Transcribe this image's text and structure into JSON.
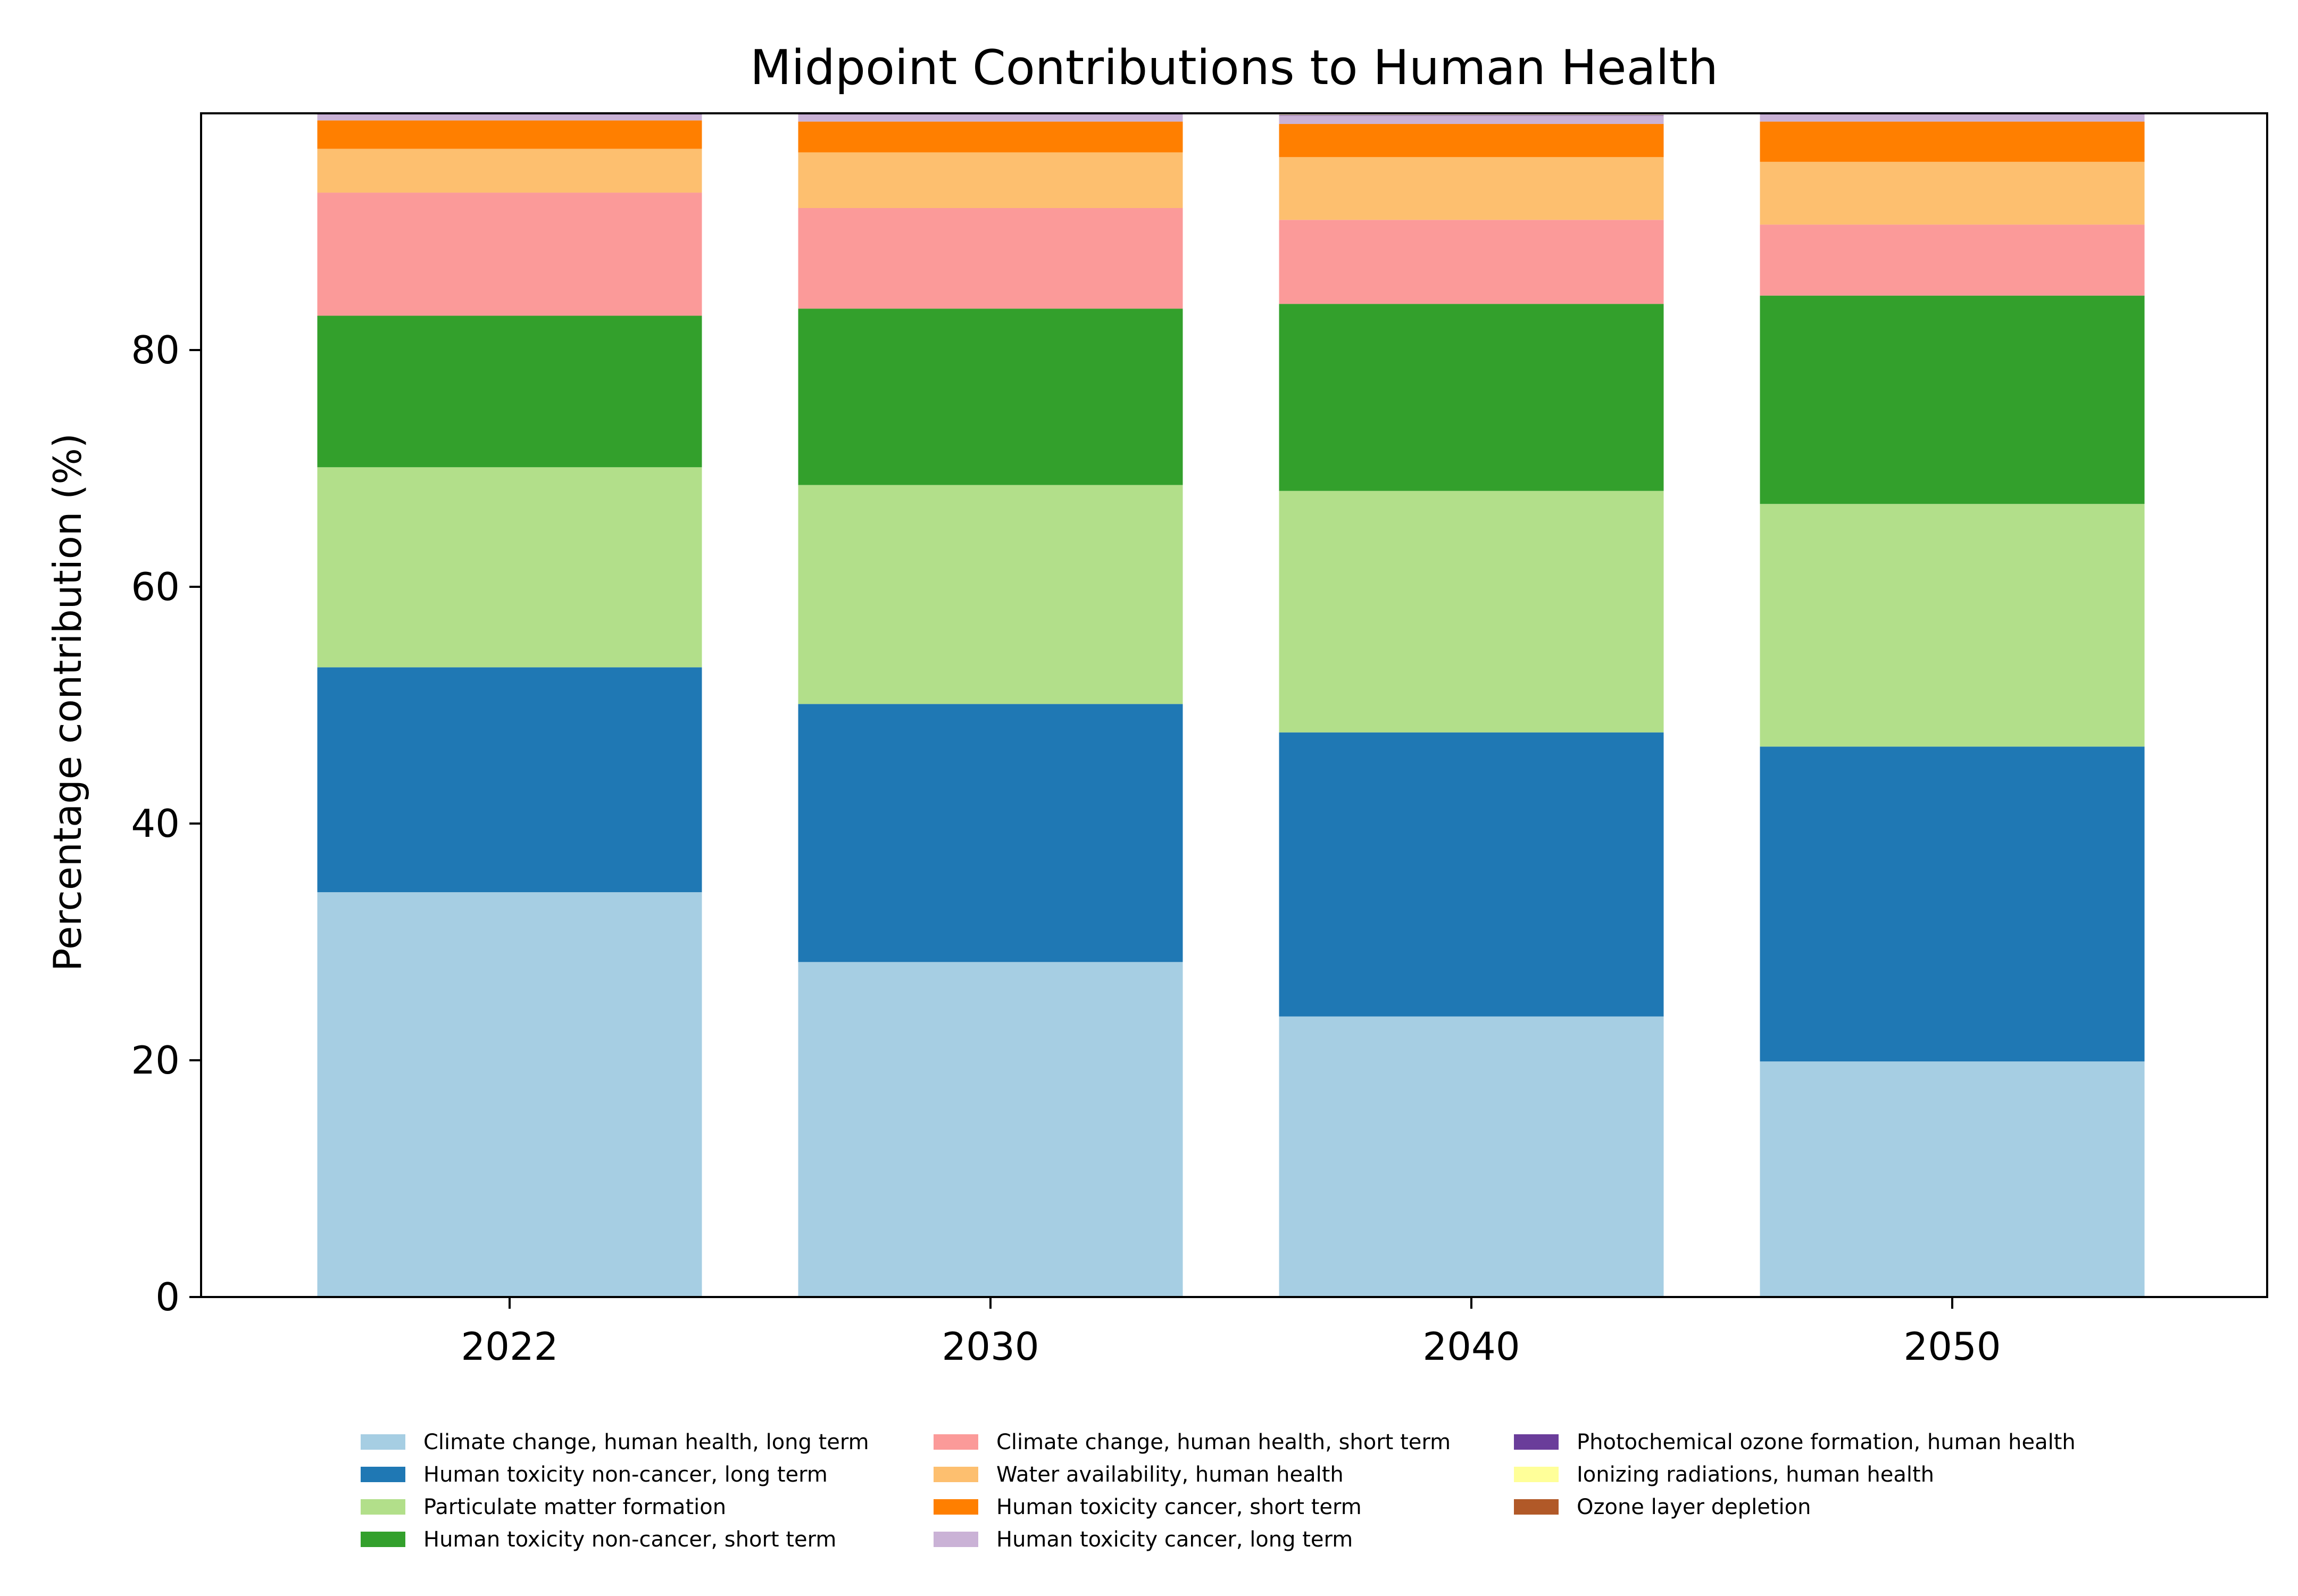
{
  "chart_data": {
    "type": "bar",
    "stacked": true,
    "title": "Midpoint Contributions to Human Health",
    "xlabel": "",
    "ylabel": "Percentage contribution (%)",
    "ylim": [
      0,
      100
    ],
    "yticks": [
      0,
      20,
      40,
      60,
      80
    ],
    "grid": false,
    "legend_position": "bottom",
    "categories": [
      "2022",
      "2030",
      "2040",
      "2050"
    ],
    "series": [
      {
        "name": "Climate change, human health, long term",
        "color": "#a6cee3",
        "values": [
          34.2,
          28.3,
          23.7,
          19.9
        ]
      },
      {
        "name": "Human toxicity non-cancer, long term",
        "color": "#1f78b4",
        "values": [
          19.0,
          21.8,
          24.0,
          26.6
        ]
      },
      {
        "name": "Particulate matter formation",
        "color": "#b2df8a",
        "values": [
          16.9,
          18.5,
          20.4,
          20.5
        ]
      },
      {
        "name": "Human toxicity non-cancer, short term",
        "color": "#33a02c",
        "values": [
          12.8,
          14.9,
          15.8,
          17.6
        ]
      },
      {
        "name": "Climate change, human health, short term",
        "color": "#fb9a99",
        "values": [
          10.4,
          8.5,
          7.1,
          6.0
        ]
      },
      {
        "name": "Water availability, human health",
        "color": "#fdbf6f",
        "values": [
          3.7,
          4.7,
          5.3,
          5.3
        ]
      },
      {
        "name": "Human toxicity cancer, short term",
        "color": "#ff7f00",
        "values": [
          2.4,
          2.6,
          2.8,
          3.4
        ]
      },
      {
        "name": "Human toxicity cancer, long term",
        "color": "#cab2d6",
        "values": [
          0.5,
          0.6,
          0.7,
          0.6
        ]
      },
      {
        "name": "Photochemical ozone formation, human health",
        "color": "#6a3d9a",
        "values": [
          0.05,
          0.05,
          0.05,
          0.05
        ]
      },
      {
        "name": "Ionizing radiations, human health",
        "color": "#ffff99",
        "values": [
          0.02,
          0.02,
          0.02,
          0.02
        ]
      },
      {
        "name": "Ozone layer depletion",
        "color": "#b15928",
        "values": [
          0.01,
          0.01,
          0.01,
          0.01
        ]
      }
    ]
  }
}
